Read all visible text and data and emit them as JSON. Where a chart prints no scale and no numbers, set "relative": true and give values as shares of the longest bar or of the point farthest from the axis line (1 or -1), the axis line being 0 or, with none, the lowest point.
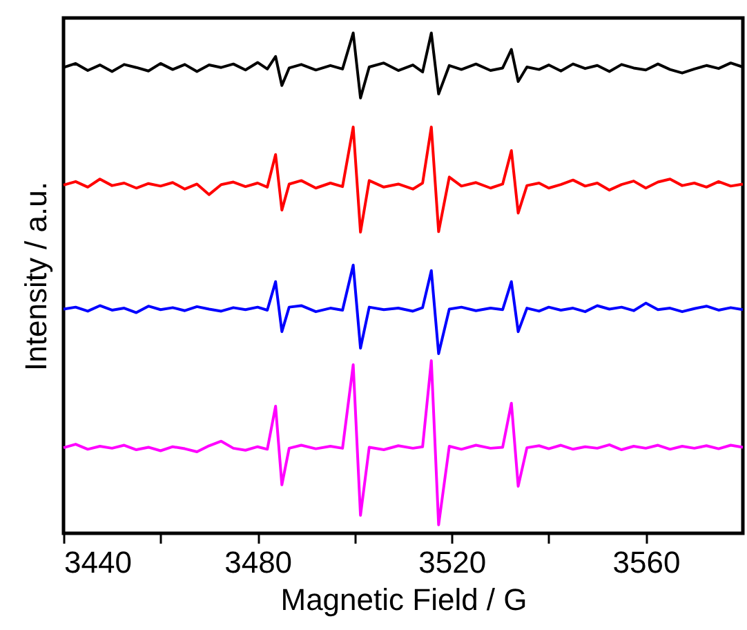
{
  "chart_data": {
    "type": "line",
    "xlabel": "Magnetic Field / G",
    "ylabel": "Intensity / a.u.",
    "relative": true,
    "xlim": [
      3440,
      3580
    ],
    "xticks": [
      3440,
      {
        "value": 3460,
        "label": null
      },
      3480,
      {
        "value": 3500,
        "label": null
      },
      3520,
      {
        "value": 3540,
        "label": null
      },
      3560
    ],
    "tick_labels": "x",
    "grid": false,
    "marker": "none",
    "line_style": "solid",
    "x": [
      3440,
      3442.5,
      3445,
      3447.5,
      3450,
      3452.5,
      3455,
      3457.5,
      3460,
      3462.5,
      3465,
      3467.5,
      3470,
      3472.5,
      3475,
      3477.5,
      3480,
      3482,
      3483.7,
      3485,
      3486.5,
      3489,
      3492,
      3495,
      3497.5,
      3499.7,
      3501.2,
      3503,
      3506,
      3509,
      3512,
      3514,
      3515.8,
      3517.3,
      3519.5,
      3522,
      3525,
      3528,
      3530.5,
      3532.3,
      3533.7,
      3535.5,
      3538,
      3540,
      3542.5,
      3545,
      3547.5,
      3550,
      3552.5,
      3555,
      3557.5,
      3560,
      3562.5,
      3565,
      3567.5,
      3570,
      3572.5,
      3575,
      3577.5,
      3580
    ],
    "series": [
      {
        "color": "#000000",
        "values": [
          0.931,
          0.939,
          0.925,
          0.936,
          0.923,
          0.937,
          0.931,
          0.924,
          0.939,
          0.927,
          0.937,
          0.923,
          0.936,
          0.931,
          0.938,
          0.926,
          0.941,
          0.928,
          0.953,
          0.895,
          0.93,
          0.937,
          0.926,
          0.935,
          0.928,
          1.0,
          0.87,
          0.932,
          0.94,
          0.925,
          0.936,
          0.922,
          1.0,
          0.878,
          0.935,
          0.927,
          0.938,
          0.925,
          0.93,
          0.967,
          0.903,
          0.932,
          0.927,
          0.936,
          0.924,
          0.938,
          0.929,
          0.935,
          0.923,
          0.937,
          0.93,
          0.926,
          0.938,
          0.927,
          0.92,
          0.928,
          0.935,
          0.929,
          0.94,
          0.932
        ]
      },
      {
        "color": "#ff0000",
        "values": [
          0.696,
          0.703,
          0.692,
          0.708,
          0.695,
          0.7,
          0.69,
          0.699,
          0.694,
          0.701,
          0.688,
          0.698,
          0.677,
          0.697,
          0.702,
          0.693,
          0.7,
          0.692,
          0.757,
          0.646,
          0.698,
          0.705,
          0.69,
          0.7,
          0.693,
          0.812,
          0.602,
          0.705,
          0.692,
          0.698,
          0.688,
          0.7,
          0.812,
          0.603,
          0.712,
          0.694,
          0.701,
          0.69,
          0.698,
          0.765,
          0.64,
          0.695,
          0.7,
          0.69,
          0.697,
          0.706,
          0.694,
          0.7,
          0.686,
          0.697,
          0.704,
          0.69,
          0.702,
          0.708,
          0.695,
          0.7,
          0.692,
          0.703,
          0.694,
          0.698
        ]
      },
      {
        "color": "#0000ff",
        "values": [
          0.448,
          0.452,
          0.444,
          0.455,
          0.446,
          0.45,
          0.441,
          0.454,
          0.447,
          0.451,
          0.445,
          0.453,
          0.448,
          0.444,
          0.451,
          0.447,
          0.452,
          0.446,
          0.503,
          0.403,
          0.452,
          0.455,
          0.443,
          0.45,
          0.446,
          0.536,
          0.37,
          0.452,
          0.447,
          0.45,
          0.444,
          0.451,
          0.525,
          0.359,
          0.448,
          0.452,
          0.445,
          0.45,
          0.447,
          0.503,
          0.403,
          0.45,
          0.444,
          0.452,
          0.446,
          0.45,
          0.443,
          0.455,
          0.448,
          0.452,
          0.445,
          0.46,
          0.447,
          0.45,
          0.443,
          0.449,
          0.454,
          0.446,
          0.451,
          0.447
        ]
      },
      {
        "color": "#ff00ff",
        "values": [
          0.171,
          0.178,
          0.168,
          0.174,
          0.17,
          0.176,
          0.167,
          0.172,
          0.165,
          0.173,
          0.169,
          0.163,
          0.175,
          0.184,
          0.17,
          0.166,
          0.173,
          0.168,
          0.254,
          0.097,
          0.17,
          0.176,
          0.169,
          0.174,
          0.17,
          0.337,
          0.036,
          0.172,
          0.167,
          0.175,
          0.17,
          0.173,
          0.345,
          0.017,
          0.174,
          0.168,
          0.176,
          0.17,
          0.172,
          0.26,
          0.094,
          0.171,
          0.175,
          0.169,
          0.176,
          0.168,
          0.173,
          0.17,
          0.177,
          0.167,
          0.174,
          0.17,
          0.176,
          0.168,
          0.174,
          0.17,
          0.175,
          0.169,
          0.176,
          0.172
        ]
      }
    ]
  }
}
